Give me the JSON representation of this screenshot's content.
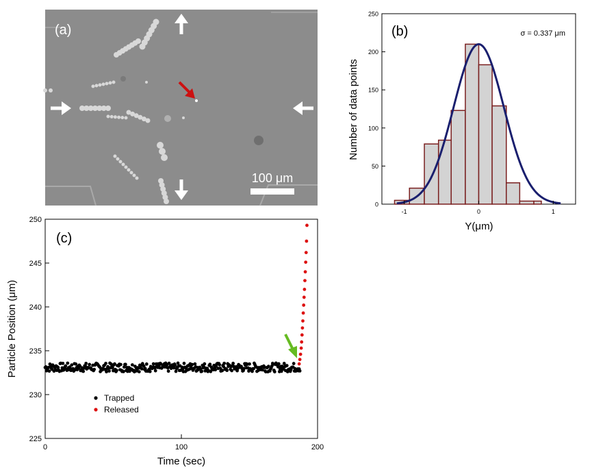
{
  "panel_a": {
    "label": "(a)",
    "scale_bar_label": "100 μm",
    "background_color": "#8c8c8c",
    "arrow_color": "#ffffff",
    "target_arrow_color": "#cc1111"
  },
  "chart_data": [
    {
      "panel": "(b)",
      "type": "bar",
      "subtype": "histogram-with-gaussian-fit",
      "annotation": "σ = 0.337 μm",
      "xlabel": "Y(μm)",
      "ylabel": "Number of data points",
      "xlim": [
        -1.3,
        1.3
      ],
      "ylim": [
        0,
        250
      ],
      "xticks": [
        "-1",
        "0",
        "1"
      ],
      "xtick_values": [
        -1,
        0,
        1
      ],
      "yticks": [
        "0",
        "50",
        "100",
        "150",
        "200",
        "250"
      ],
      "ytick_values": [
        0,
        50,
        100,
        150,
        200,
        250
      ],
      "bin_edges": [
        -1.13,
        -0.93,
        -0.73,
        -0.54,
        -0.37,
        -0.18,
        0.0,
        0.18,
        0.37,
        0.55,
        0.74,
        0.84
      ],
      "values": [
        5,
        21,
        79,
        84,
        123,
        210,
        183,
        129,
        28,
        4,
        4
      ],
      "fit": {
        "amplitude": 210,
        "mean": 0.0,
        "sigma": 0.337
      },
      "colors": {
        "bar_fill": "#d3d3d3",
        "bar_edge": "#7a1f1f",
        "fit_line": "#1a1f6e"
      }
    },
    {
      "panel": "(c)",
      "type": "scatter",
      "xlabel": "Time (sec)",
      "ylabel": "Particle Position (μm)",
      "xlim": [
        0,
        200
      ],
      "ylim": [
        225,
        250
      ],
      "xticks": [
        "0",
        "100",
        "200"
      ],
      "xtick_values": [
        0,
        100,
        200
      ],
      "yticks": [
        "225",
        "230",
        "235",
        "240",
        "245",
        "250"
      ],
      "ytick_values": [
        225,
        230,
        235,
        240,
        245,
        250
      ],
      "series": [
        {
          "name": "Trapped",
          "color": "#000000",
          "x_range": [
            0,
            187
          ],
          "y_mean": 233.1,
          "y_spread": 0.5
        },
        {
          "name": "Released",
          "color": "#dd1111",
          "x": [
            186.5,
            187,
            187.5,
            188,
            188.3,
            188.6,
            188.9,
            189.2,
            189.5,
            189.8,
            190.1,
            190.4,
            190.7,
            191,
            191.3,
            191.6,
            191.9,
            192.2
          ],
          "y": [
            233.5,
            234.0,
            234.6,
            235.3,
            236.0,
            236.8,
            237.6,
            238.4,
            239.3,
            240.2,
            241.1,
            242.0,
            243.0,
            244.0,
            245.1,
            246.2,
            247.5,
            249.3
          ]
        }
      ],
      "release_arrow_color": "#66bb22"
    }
  ]
}
